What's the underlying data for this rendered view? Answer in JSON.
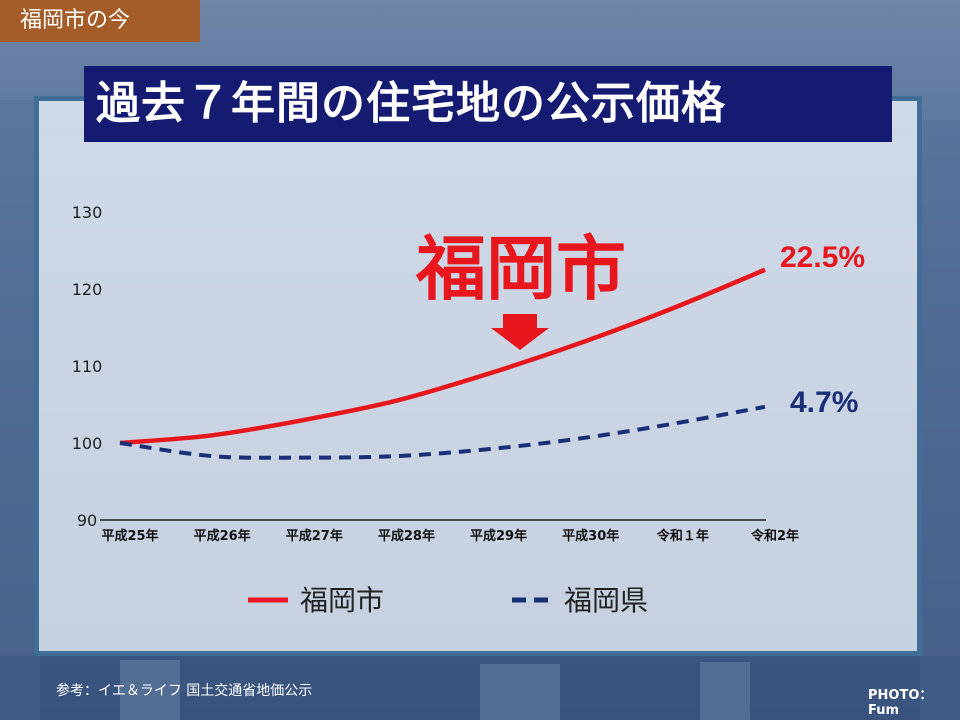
{
  "header": {
    "tag": "福岡市の今"
  },
  "slide": {
    "title": "過去７年間の住宅地の公示価格"
  },
  "chart_data": {
    "type": "line",
    "categories": [
      "平成25年",
      "平成26年",
      "平成27年",
      "平成28年",
      "平成29年",
      "平成30年",
      "令和１年",
      "令和2年"
    ],
    "ylim": [
      90,
      130
    ],
    "yticks": [
      "90",
      "100",
      "110",
      "120",
      "130"
    ],
    "grid": false,
    "legend_placement": "bottom",
    "series": [
      {
        "name": "福岡市",
        "values": [
          100,
          101,
          103,
          105.5,
          109,
          113,
          117.5,
          122.5
        ],
        "color": "#e8171e",
        "style": "solid",
        "end_label": "22.5%"
      },
      {
        "name": "福岡県",
        "values": [
          100,
          98.3,
          98.1,
          98.3,
          99.2,
          100.6,
          102.5,
          104.7
        ],
        "color": "#1a2f78",
        "style": "dashed",
        "end_label": "4.7%"
      }
    ],
    "annotation": {
      "text": "福岡市",
      "color": "#e8171e"
    }
  },
  "footer": {
    "source": "参考：イエ＆ライフ 国土交通省地価公示",
    "photo_credit": "PHOTO：Fum"
  },
  "colors": {
    "title_bg": "#161b72",
    "tag_bg": "#a45c28",
    "panel_border": "#3f6f96"
  }
}
